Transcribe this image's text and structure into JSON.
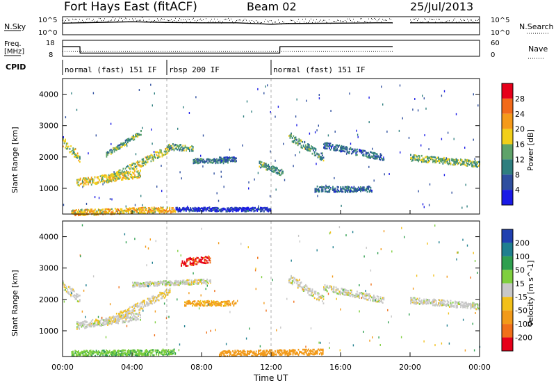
{
  "header": {
    "radar": "Fort Hays East (fitACF)",
    "beam": "Beam 02",
    "date": "25/Jul/2013"
  },
  "noise_panel": {
    "left_label": "N.Sky",
    "right_label": "N.Search",
    "left_ticks": [
      "10^5",
      "10^0"
    ],
    "right_ticks": [
      "10^5",
      "10^0"
    ]
  },
  "freq_panel": {
    "left_label_line1": "Freq.",
    "left_label_line2": "[MHz]",
    "right_label": "Nave",
    "left_ticks": [
      "18",
      "8"
    ],
    "right_ticks": [
      "60",
      "0"
    ]
  },
  "cpid": {
    "label": "CPID",
    "segments": [
      {
        "label": "normal (fast) 151 IF",
        "start_hour": 0.0,
        "end_hour": 6.0
      },
      {
        "label": "rbsp 200 IF",
        "start_hour": 6.0,
        "end_hour": 12.0
      },
      {
        "label": "normal (fast) 151 IF",
        "start_hour": 12.0,
        "end_hour": 24.0
      }
    ]
  },
  "axes": {
    "ylabel": "Slant Range [km]",
    "yticks": [
      "4000",
      "3000",
      "2000",
      "1000"
    ],
    "xlabel": "Time UT",
    "xticks": [
      "00:00",
      "04:00",
      "08:00",
      "12:00",
      "16:00",
      "20:00",
      "00:00"
    ]
  },
  "power_colorbar": {
    "label": "Power [dB]",
    "ticks": [
      "28",
      "24",
      "20",
      "16",
      "12",
      "8",
      "4"
    ],
    "colors": [
      "#e6001a",
      "#f26a1a",
      "#f59a1a",
      "#f2cf1a",
      "#5fa36a",
      "#2f7f7f",
      "#2f4f9f",
      "#1a1ae6"
    ]
  },
  "velocity_colorbar": {
    "label": "Velocity [m s^-1]",
    "ticks": [
      "200",
      "100",
      "50",
      "15",
      "-15",
      "-50",
      "-100",
      "-200"
    ],
    "colors": [
      "#2040b0",
      "#1f7f8f",
      "#2f9f4f",
      "#7fcf3f",
      "#c8c8c8",
      "#f2c01a",
      "#f29a1a",
      "#f0701a",
      "#e6001a"
    ]
  },
  "chart_data": [
    {
      "type": "line",
      "title": "N.Sky / N.Search",
      "x_unit": "hour UT",
      "x": [
        0,
        2,
        4,
        6,
        8,
        10,
        12,
        13,
        16,
        18,
        19.0,
        19.3,
        20,
        22,
        24
      ],
      "series": [
        {
          "name": "N.Sky",
          "values_log10": [
            3.2,
            3.4,
            3.6,
            3.4,
            3.3,
            3.3,
            2.9,
            3.1,
            3.2,
            3.3,
            3.3,
            null,
            3.3,
            3.3,
            3.3
          ]
        }
      ],
      "ylim_log10": [
        0,
        5
      ]
    },
    {
      "type": "line",
      "title": "Freq. [MHz] / Nave",
      "x_unit": "hour UT",
      "x": [
        0,
        1,
        1.01,
        12.5,
        12.51,
        19.0,
        19.3,
        24
      ],
      "series": [
        {
          "name": "Freq.",
          "values": [
            14,
            14,
            10,
            10,
            14,
            14,
            null,
            14
          ]
        },
        {
          "name": "Nave",
          "values": [
            18,
            18,
            18,
            18,
            18,
            18,
            null,
            18
          ]
        }
      ],
      "ylim_left": [
        8,
        18
      ],
      "ylim_right": [
        0,
        60
      ]
    },
    {
      "type": "heatmap",
      "title": "Power [dB]",
      "x_unit": "hour UT",
      "y_unit": "km",
      "xlim": [
        0,
        24
      ],
      "ylim": [
        180,
        4500
      ],
      "gap_hours": [
        [
          19.0,
          19.3
        ]
      ],
      "features": [
        {
          "start_hour": 0.0,
          "end_hour": 1.0,
          "range_start_km": 2500,
          "range_end_km": 2000,
          "width_km": 300,
          "power_db": 18
        },
        {
          "start_hour": 0.8,
          "end_hour": 4.5,
          "range_start_km": 1200,
          "range_end_km": 1500,
          "width_km": 250,
          "power_db": 20
        },
        {
          "start_hour": 2.5,
          "end_hour": 6.2,
          "range_start_km": 1300,
          "range_end_km": 2300,
          "width_km": 250,
          "power_db": 18
        },
        {
          "start_hour": 2.5,
          "end_hour": 4.5,
          "range_start_km": 2100,
          "range_end_km": 2800,
          "width_km": 150,
          "power_db": 14
        },
        {
          "start_hour": 0.5,
          "end_hour": 6.5,
          "range_start_km": 250,
          "range_end_km": 350,
          "width_km": 180,
          "power_db": 22
        },
        {
          "start_hour": 6.0,
          "end_hour": 7.5,
          "range_start_km": 2350,
          "range_end_km": 2300,
          "width_km": 200,
          "power_db": 14
        },
        {
          "start_hour": 7.5,
          "end_hour": 9.5,
          "range_start_km": 1900,
          "range_end_km": 1900,
          "width_km": 150,
          "power_db": 12
        },
        {
          "start_hour": 9.0,
          "end_hour": 10.0,
          "range_start_km": 1950,
          "range_end_km": 1950,
          "width_km": 150,
          "power_db": 10
        },
        {
          "start_hour": 11.3,
          "end_hour": 12.7,
          "range_start_km": 1800,
          "range_end_km": 1500,
          "width_km": 200,
          "power_db": 14
        },
        {
          "start_hour": 13.0,
          "end_hour": 15.0,
          "range_start_km": 2700,
          "range_end_km": 2000,
          "width_km": 250,
          "power_db": 14
        },
        {
          "start_hour": 15.0,
          "end_hour": 18.5,
          "range_start_km": 2400,
          "range_end_km": 2000,
          "width_km": 200,
          "power_db": 10
        },
        {
          "start_hour": 14.5,
          "end_hour": 17.8,
          "range_start_km": 1000,
          "range_end_km": 1000,
          "width_km": 180,
          "power_db": 10
        },
        {
          "start_hour": 20.0,
          "end_hour": 24.0,
          "range_start_km": 2000,
          "range_end_km": 1800,
          "width_km": 200,
          "power_db": 16
        },
        {
          "start_hour": 6.5,
          "end_hour": 12.0,
          "range_start_km": 350,
          "range_end_km": 350,
          "width_km": 120,
          "power_db": 6
        }
      ]
    },
    {
      "type": "heatmap",
      "title": "Velocity [m s^-1]",
      "x_unit": "hour UT",
      "y_unit": "km",
      "xlim": [
        0,
        24
      ],
      "ylim": [
        180,
        4500
      ],
      "gap_hours": [
        [
          19.0,
          19.3
        ]
      ],
      "features": [
        {
          "start_hour": 0.0,
          "end_hour": 1.0,
          "range_start_km": 2500,
          "range_end_km": 2000,
          "width_km": 300,
          "velocity": 0
        },
        {
          "start_hour": 0.8,
          "end_hour": 4.5,
          "range_start_km": 1200,
          "range_end_km": 1500,
          "width_km": 250,
          "velocity": 0
        },
        {
          "start_hour": 2.5,
          "end_hour": 6.2,
          "range_start_km": 1300,
          "range_end_km": 2300,
          "width_km": 250,
          "velocity": -10
        },
        {
          "start_hour": 4.0,
          "end_hour": 8.5,
          "range_start_km": 2500,
          "range_end_km": 2600,
          "width_km": 150,
          "velocity": 0
        },
        {
          "start_hour": 0.5,
          "end_hour": 6.5,
          "range_start_km": 300,
          "range_end_km": 350,
          "width_km": 180,
          "velocity": 40
        },
        {
          "start_hour": 7.0,
          "end_hour": 10.0,
          "range_start_km": 1900,
          "range_end_km": 1900,
          "width_km": 160,
          "velocity": -60
        },
        {
          "start_hour": 6.8,
          "end_hour": 8.5,
          "range_start_km": 3200,
          "range_end_km": 3300,
          "width_km": 250,
          "velocity": -200
        },
        {
          "start_hour": 9.0,
          "end_hour": 15.0,
          "range_start_km": 300,
          "range_end_km": 350,
          "width_km": 180,
          "velocity": -70
        },
        {
          "start_hour": 13.0,
          "end_hour": 15.0,
          "range_start_km": 2700,
          "range_end_km": 2000,
          "width_km": 250,
          "velocity": 0
        },
        {
          "start_hour": 15.0,
          "end_hour": 18.5,
          "range_start_km": 2400,
          "range_end_km": 2000,
          "width_km": 200,
          "velocity": 0
        },
        {
          "start_hour": 20.0,
          "end_hour": 24.0,
          "range_start_km": 2000,
          "range_end_km": 1800,
          "width_km": 200,
          "velocity": 0
        }
      ]
    }
  ]
}
